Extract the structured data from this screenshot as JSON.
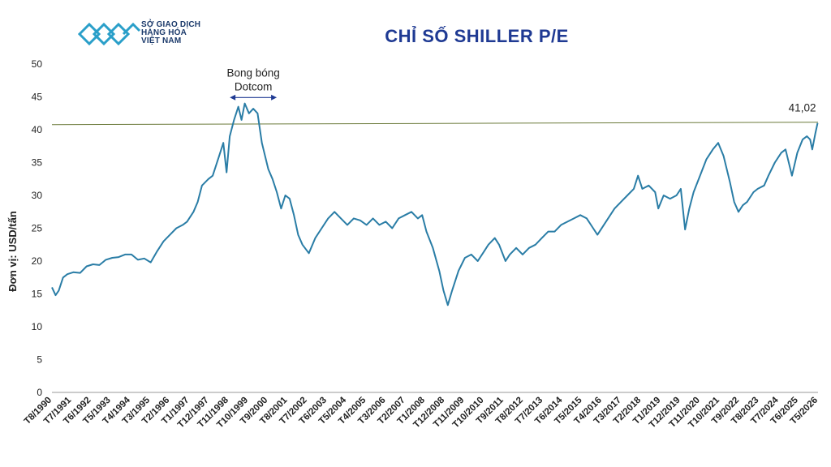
{
  "logo": {
    "lines": [
      "SỞ GIAO DỊCH",
      "HÀNG HÓA",
      "VIỆT NAM"
    ],
    "brand_color": "#2a9fc9"
  },
  "chart_data": {
    "type": "line",
    "title": "CHỈ SỐ SHILLER P/E",
    "xlabel": "",
    "ylabel": "Đơn vị: USD/tấn",
    "ylim": [
      0,
      50
    ],
    "yticks": [
      0,
      5,
      10,
      15,
      20,
      25,
      30,
      35,
      40,
      45,
      50
    ],
    "grid": false,
    "x_ticks": [
      "T8/1990",
      "T7/1991",
      "T6/1992",
      "T5/1993",
      "T4/1994",
      "T3/1995",
      "T2/1996",
      "T1/1997",
      "T12/1997",
      "T11/1998",
      "T10/1999",
      "T9/2000",
      "T8/2001",
      "T7/2002",
      "T6/2003",
      "T5/2004",
      "T4/2005",
      "T3/2006",
      "T2/2007",
      "T1/2008",
      "T12/2008",
      "T11/2009",
      "T10/2010",
      "T9/2011",
      "T8/2012",
      "T7/2013",
      "T6/2014",
      "T5/2015",
      "T4/2016",
      "T3/2017",
      "T2/2018",
      "T1/2019",
      "T12/2019",
      "T11/2020",
      "T10/2021",
      "T9/2022",
      "T8/2023",
      "T7/2024",
      "T6/2025",
      "T5/2026"
    ],
    "series": [
      {
        "color": "#2a7da6",
        "points": [
          [
            1990.58,
            16.0
          ],
          [
            1990.75,
            14.8
          ],
          [
            1990.9,
            15.5
          ],
          [
            1991.1,
            17.5
          ],
          [
            1991.3,
            18.0
          ],
          [
            1991.58,
            18.3
          ],
          [
            1991.9,
            18.2
          ],
          [
            1992.2,
            19.2
          ],
          [
            1992.5,
            19.5
          ],
          [
            1992.8,
            19.4
          ],
          [
            1993.1,
            20.2
          ],
          [
            1993.4,
            20.5
          ],
          [
            1993.7,
            20.6
          ],
          [
            1994.0,
            21.0
          ],
          [
            1994.3,
            21.0
          ],
          [
            1994.6,
            20.2
          ],
          [
            1994.9,
            20.4
          ],
          [
            1995.2,
            19.8
          ],
          [
            1995.5,
            21.5
          ],
          [
            1995.8,
            23.0
          ],
          [
            1996.1,
            24.0
          ],
          [
            1996.4,
            25.0
          ],
          [
            1996.7,
            25.5
          ],
          [
            1996.9,
            26.0
          ],
          [
            1997.2,
            27.5
          ],
          [
            1997.4,
            29.0
          ],
          [
            1997.6,
            31.5
          ],
          [
            1997.9,
            32.5
          ],
          [
            1998.1,
            33.0
          ],
          [
            1998.4,
            36.0
          ],
          [
            1998.6,
            38.0
          ],
          [
            1998.75,
            33.5
          ],
          [
            1998.9,
            39.0
          ],
          [
            1999.1,
            41.5
          ],
          [
            1999.3,
            43.5
          ],
          [
            1999.45,
            41.5
          ],
          [
            1999.6,
            44.0
          ],
          [
            1999.8,
            42.5
          ],
          [
            2000.0,
            43.2
          ],
          [
            2000.2,
            42.5
          ],
          [
            2000.4,
            38.0
          ],
          [
            2000.7,
            34.0
          ],
          [
            2000.9,
            32.5
          ],
          [
            2001.1,
            30.5
          ],
          [
            2001.3,
            28.0
          ],
          [
            2001.5,
            30.0
          ],
          [
            2001.7,
            29.5
          ],
          [
            2001.9,
            27.0
          ],
          [
            2002.1,
            24.0
          ],
          [
            2002.3,
            22.5
          ],
          [
            2002.6,
            21.2
          ],
          [
            2002.9,
            23.5
          ],
          [
            2003.2,
            25.0
          ],
          [
            2003.5,
            26.5
          ],
          [
            2003.8,
            27.5
          ],
          [
            2004.1,
            26.5
          ],
          [
            2004.4,
            25.5
          ],
          [
            2004.7,
            26.5
          ],
          [
            2005.0,
            26.2
          ],
          [
            2005.3,
            25.5
          ],
          [
            2005.6,
            26.5
          ],
          [
            2005.9,
            25.5
          ],
          [
            2006.2,
            26.0
          ],
          [
            2006.5,
            25.0
          ],
          [
            2006.8,
            26.5
          ],
          [
            2007.1,
            27.0
          ],
          [
            2007.4,
            27.5
          ],
          [
            2007.7,
            26.5
          ],
          [
            2007.9,
            27.0
          ],
          [
            2008.1,
            24.5
          ],
          [
            2008.4,
            22.0
          ],
          [
            2008.7,
            18.5
          ],
          [
            2008.9,
            15.5
          ],
          [
            2009.1,
            13.3
          ],
          [
            2009.3,
            15.5
          ],
          [
            2009.6,
            18.5
          ],
          [
            2009.9,
            20.5
          ],
          [
            2010.2,
            21.0
          ],
          [
            2010.5,
            20.0
          ],
          [
            2010.8,
            21.5
          ],
          [
            2011.0,
            22.5
          ],
          [
            2011.3,
            23.5
          ],
          [
            2011.5,
            22.5
          ],
          [
            2011.8,
            20.0
          ],
          [
            2012.0,
            21.0
          ],
          [
            2012.3,
            22.0
          ],
          [
            2012.6,
            21.0
          ],
          [
            2012.9,
            22.0
          ],
          [
            2013.2,
            22.5
          ],
          [
            2013.5,
            23.5
          ],
          [
            2013.8,
            24.5
          ],
          [
            2014.1,
            24.5
          ],
          [
            2014.4,
            25.5
          ],
          [
            2014.7,
            26.0
          ],
          [
            2015.0,
            26.5
          ],
          [
            2015.3,
            27.0
          ],
          [
            2015.6,
            26.5
          ],
          [
            2015.9,
            25.0
          ],
          [
            2016.1,
            24.0
          ],
          [
            2016.4,
            25.5
          ],
          [
            2016.7,
            27.0
          ],
          [
            2016.9,
            28.0
          ],
          [
            2017.2,
            29.0
          ],
          [
            2017.5,
            30.0
          ],
          [
            2017.8,
            31.0
          ],
          [
            2018.0,
            33.0
          ],
          [
            2018.2,
            31.0
          ],
          [
            2018.5,
            31.5
          ],
          [
            2018.8,
            30.5
          ],
          [
            2018.95,
            28.0
          ],
          [
            2019.2,
            30.0
          ],
          [
            2019.5,
            29.5
          ],
          [
            2019.8,
            30.0
          ],
          [
            2020.0,
            31.0
          ],
          [
            2020.2,
            24.8
          ],
          [
            2020.4,
            28.0
          ],
          [
            2020.6,
            30.5
          ],
          [
            2020.9,
            33.0
          ],
          [
            2021.2,
            35.5
          ],
          [
            2021.5,
            37.0
          ],
          [
            2021.75,
            38.0
          ],
          [
            2022.0,
            36.0
          ],
          [
            2022.3,
            32.0
          ],
          [
            2022.5,
            29.0
          ],
          [
            2022.7,
            27.5
          ],
          [
            2022.9,
            28.5
          ],
          [
            2023.1,
            29.0
          ],
          [
            2023.4,
            30.5
          ],
          [
            2023.6,
            31.0
          ],
          [
            2023.9,
            31.5
          ],
          [
            2024.1,
            33.0
          ],
          [
            2024.4,
            35.0
          ],
          [
            2024.7,
            36.5
          ],
          [
            2024.9,
            37.0
          ],
          [
            2025.2,
            33.0
          ],
          [
            2025.45,
            36.5
          ],
          [
            2025.7,
            38.5
          ],
          [
            2025.9,
            39.0
          ],
          [
            2026.05,
            38.5
          ],
          [
            2026.15,
            37.0
          ],
          [
            2026.3,
            39.5
          ],
          [
            2026.4,
            41.02
          ]
        ]
      }
    ],
    "reference_line": {
      "value": 41.02,
      "color": "#6b7a3a"
    },
    "annotations": {
      "last_value_label": "41,02",
      "bubble": {
        "line1": "Bong bóng",
        "line2": "Dotcom",
        "x_from": 1998.9,
        "x_to": 2001.1,
        "arrow_value": 44.9,
        "color": "#1f3a93"
      }
    }
  }
}
